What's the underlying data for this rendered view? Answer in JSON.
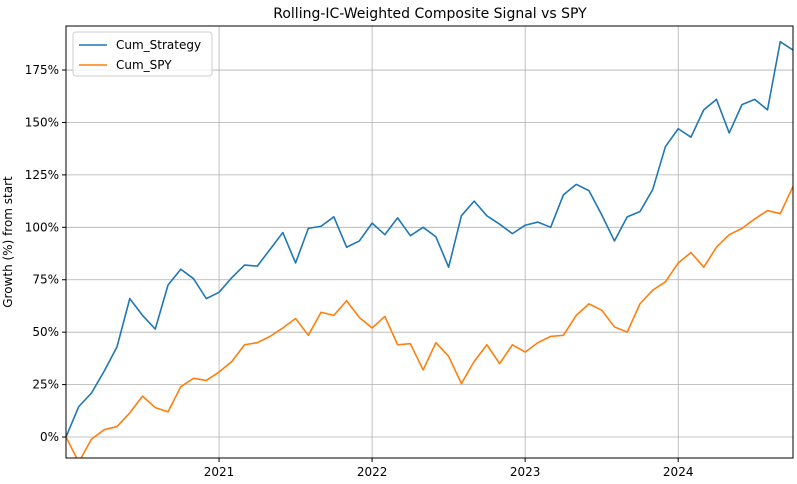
{
  "chart_data": {
    "type": "line",
    "title": "Rolling-IC-Weighted Composite Signal vs SPY",
    "xlabel": "",
    "ylabel": "Growth (%) from start",
    "x_ticks": [
      "2021",
      "2022",
      "2023",
      "2024"
    ],
    "y_ticks": [
      "0%",
      "25%",
      "50%",
      "75%",
      "100%",
      "125%",
      "150%",
      "175%"
    ],
    "ylim": [
      -10,
      196
    ],
    "xlim": [
      "2020-01",
      "2024-10"
    ],
    "grid": true,
    "legend_position": "upper-left",
    "x": [
      "2020-01",
      "2020-02",
      "2020-03",
      "2020-04",
      "2020-05",
      "2020-06",
      "2020-07",
      "2020-08",
      "2020-09",
      "2020-10",
      "2020-11",
      "2020-12",
      "2021-01",
      "2021-02",
      "2021-03",
      "2021-04",
      "2021-05",
      "2021-06",
      "2021-07",
      "2021-08",
      "2021-09",
      "2021-10",
      "2021-11",
      "2021-12",
      "2022-01",
      "2022-02",
      "2022-03",
      "2022-04",
      "2022-05",
      "2022-06",
      "2022-07",
      "2022-08",
      "2022-09",
      "2022-10",
      "2022-11",
      "2022-12",
      "2023-01",
      "2023-02",
      "2023-03",
      "2023-04",
      "2023-05",
      "2023-06",
      "2023-07",
      "2023-08",
      "2023-09",
      "2023-10",
      "2023-11",
      "2023-12",
      "2024-01",
      "2024-02",
      "2024-03",
      "2024-04",
      "2024-05",
      "2024-06",
      "2024-07",
      "2024-08",
      "2024-09",
      "2024-10"
    ],
    "series": [
      {
        "name": "Cum_Strategy",
        "color": "#1f77b4",
        "values": [
          0,
          14.5,
          21,
          31.5,
          43,
          66,
          58,
          51.5,
          72.5,
          80,
          75.5,
          66,
          69,
          76,
          82,
          81.5,
          89.5,
          97.5,
          83,
          99.5,
          100.5,
          105,
          90.5,
          93.5,
          102,
          96.5,
          104.5,
          96,
          100,
          95.5,
          81,
          105.5,
          112.5,
          105.5,
          101.5,
          97,
          101,
          102.5,
          100,
          115.5,
          120.5,
          117.5,
          106,
          93.5,
          105,
          107.5,
          118,
          138.5,
          147,
          143,
          156,
          161,
          145,
          158.5,
          161,
          156,
          188.5,
          184.5
        ]
      },
      {
        "name": "Cum_SPY",
        "color": "#ff7f0e",
        "values": [
          0,
          -12,
          -1,
          3.5,
          5,
          11.5,
          19.5,
          14,
          12,
          24,
          28,
          27,
          31,
          36,
          44,
          45,
          48,
          52,
          56.5,
          48.5,
          59.5,
          58,
          65,
          57,
          52,
          57.5,
          44,
          44.5,
          32,
          45,
          38.5,
          25.5,
          36,
          44,
          35,
          44,
          40.5,
          45,
          48,
          48.5,
          58,
          63.5,
          60.5,
          52.5,
          50,
          63.5,
          70,
          74,
          83,
          88,
          81,
          90.5,
          96.5,
          99.5,
          104,
          108,
          106.5,
          119.5
        ]
      }
    ]
  }
}
